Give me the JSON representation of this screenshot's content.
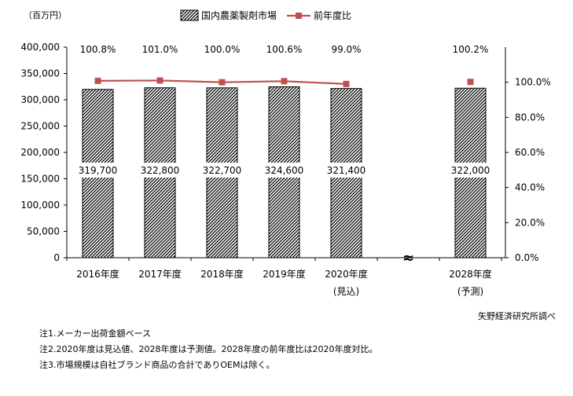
{
  "chart_data": {
    "type": "bar",
    "categories": [
      "2016年度",
      "2017年度",
      "2018年度",
      "2019年度",
      "2020年度",
      "2028年度"
    ],
    "category_sublabels": [
      "",
      "",
      "",
      "",
      "(見込)",
      "(予測)"
    ],
    "series": [
      {
        "name": "国内農薬製剤市場",
        "type": "bar",
        "axis": "left",
        "values": [
          319700,
          322800,
          322700,
          324600,
          321400,
          322000
        ],
        "labels": [
          "319,700",
          "322,800",
          "322,700",
          "324,600",
          "321,400",
          "322,000"
        ]
      },
      {
        "name": "前年度比",
        "type": "line",
        "axis": "right",
        "values": [
          100.8,
          101.0,
          100.0,
          100.6,
          99.0,
          100.2
        ],
        "labels": [
          "100.8%",
          "101.0%",
          "100.0%",
          "100.6%",
          "99.0%",
          "100.2%"
        ]
      }
    ],
    "left_axis": {
      "unit_label": "（百万円）",
      "ylim": [
        0,
        400000
      ],
      "ticks": [
        0,
        50000,
        100000,
        150000,
        200000,
        250000,
        300000,
        350000,
        400000
      ],
      "tick_labels": [
        "0",
        "50,000",
        "100,000",
        "150,000",
        "200,000",
        "250,000",
        "300,000",
        "350,000",
        "400,000"
      ]
    },
    "right_axis": {
      "ylim": [
        0,
        120
      ],
      "ticks": [
        0,
        20,
        40,
        60,
        80,
        100
      ],
      "tick_labels": [
        "0.0%",
        "20.0%",
        "40.0%",
        "60.0%",
        "80.0%",
        "100.0%"
      ]
    },
    "axis_break_symbol": "≈",
    "legend_position": "top-center",
    "grid": false,
    "colors": {
      "line": "#c0504d",
      "bar_hatch": "#000000"
    }
  },
  "notes": [
    "注1.メーカー出荷金額ベース",
    "注2.2020年度は見込値、2028年度は予測値。2028年度の前年度比は2020年度対比。",
    "注3.市場規模は自社ブランド商品の合計でありOEMは除く。"
  ],
  "source": "矢野経済研究所調べ"
}
